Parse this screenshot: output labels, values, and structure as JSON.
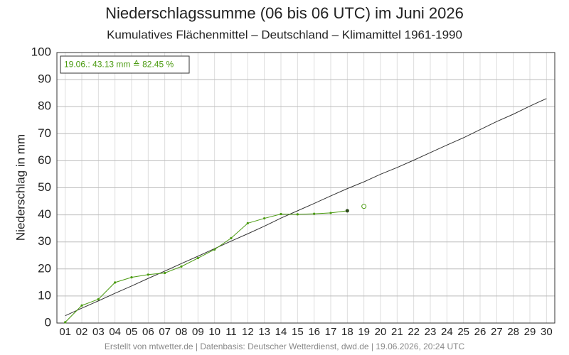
{
  "chart_data": {
    "type": "line",
    "title": "Niederschlagssumme (06 bis 06 UTC) im Juni 2026",
    "subtitle": "Kumulatives Flächenmittel – Deutschland – Klimamittel 1961-1990",
    "ylabel": "Niederschlag in mm",
    "annotation": "19.06.: 43.13 mm ≙ 82.45 %",
    "footer": "Erstellt von mtwetter.de | Datenbasis: Deutscher Wetterdienst, dwd.de | 19.06.2026, 20:24 UTC",
    "categories": [
      "01",
      "02",
      "03",
      "04",
      "05",
      "06",
      "07",
      "08",
      "09",
      "10",
      "11",
      "12",
      "13",
      "14",
      "15",
      "16",
      "17",
      "18",
      "19",
      "20",
      "21",
      "22",
      "23",
      "24",
      "25",
      "26",
      "27",
      "28",
      "29",
      "30"
    ],
    "ylim": [
      0,
      100
    ],
    "yticks": [
      0,
      10,
      20,
      30,
      40,
      50,
      60,
      70,
      80,
      90,
      100
    ],
    "grid": true,
    "series": [
      {
        "color": "#333333",
        "marker": false,
        "values": [
          2.7,
          5.5,
          8.2,
          11,
          13.7,
          16.5,
          19.2,
          22,
          24.7,
          27.5,
          30.3,
          33,
          35.8,
          38.8,
          41.5,
          44.2,
          47,
          49.7,
          52.2,
          55,
          57.5,
          60.2,
          63,
          65.8,
          68.5,
          71.5,
          74.5,
          77.2,
          80.2,
          83
        ]
      },
      {
        "color": "#4a9a10",
        "marker": true,
        "last_point_color": "#2d4a1a",
        "values": [
          0.3,
          6.5,
          8.8,
          15,
          16.9,
          17.9,
          18.5,
          20.9,
          24,
          27.2,
          31.4,
          36.9,
          38.7,
          40.3,
          40.2,
          40.4,
          40.7,
          41.5,
          null,
          null,
          null,
          null,
          null,
          null,
          null,
          null,
          null,
          null,
          null,
          null
        ]
      },
      {
        "color": "#4a9a10",
        "marker": "open",
        "values": [
          null,
          null,
          null,
          null,
          null,
          null,
          null,
          null,
          null,
          null,
          null,
          null,
          null,
          null,
          null,
          null,
          null,
          null,
          43.13,
          null,
          null,
          null,
          null,
          null,
          null,
          null,
          null,
          null,
          null,
          null
        ]
      }
    ]
  }
}
